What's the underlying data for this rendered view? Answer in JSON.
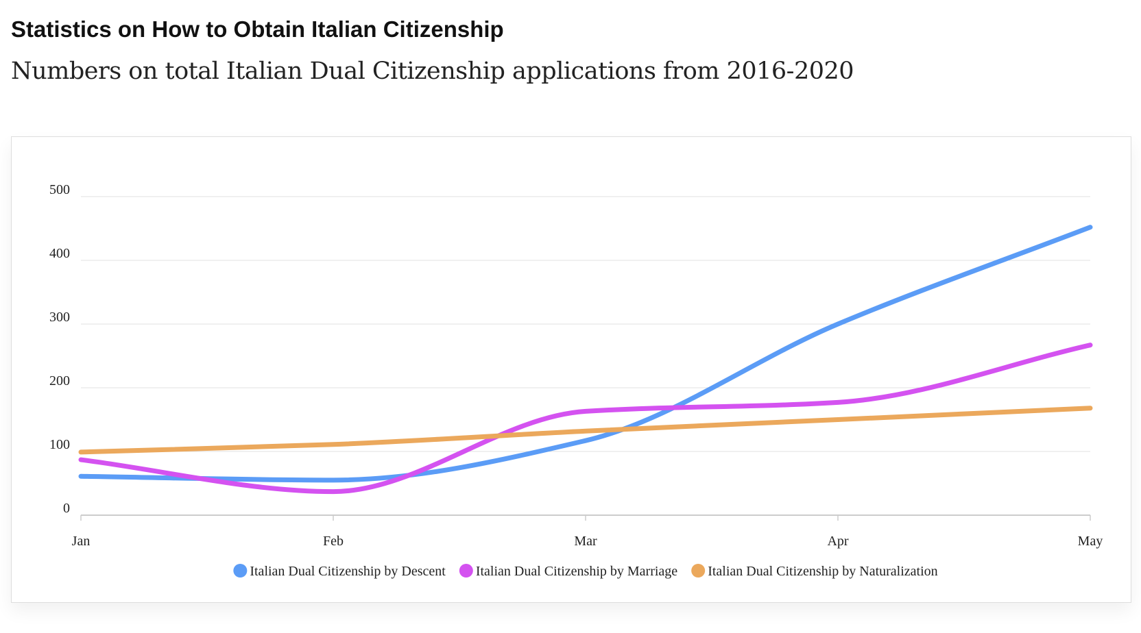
{
  "chart_data": {
    "type": "line",
    "title": "Statistics on How to Obtain Italian Citizenship",
    "subtitle": "Numbers on total Italian Dual Citizenship applications from 2016-2020",
    "categories": [
      "Jan",
      "Feb",
      "Mar",
      "Apr",
      "May"
    ],
    "series": [
      {
        "name": "Italian Dual Citizenship by Descent",
        "color": "#5b9cf6",
        "values": [
          61,
          55,
          117,
          300,
          452
        ]
      },
      {
        "name": "Italian Dual Citizenship by Marriage",
        "color": "#d452f0",
        "values": [
          87,
          37,
          163,
          177,
          267
        ]
      },
      {
        "name": "Italian Dual Citizenship by Naturalization",
        "color": "#eba85c",
        "values": [
          99,
          111,
          132,
          150,
          168
        ]
      }
    ],
    "ylim": [
      0,
      500
    ],
    "yticks": [
      0,
      100,
      200,
      300,
      400,
      500
    ],
    "grid": true,
    "legend": "bottom"
  }
}
